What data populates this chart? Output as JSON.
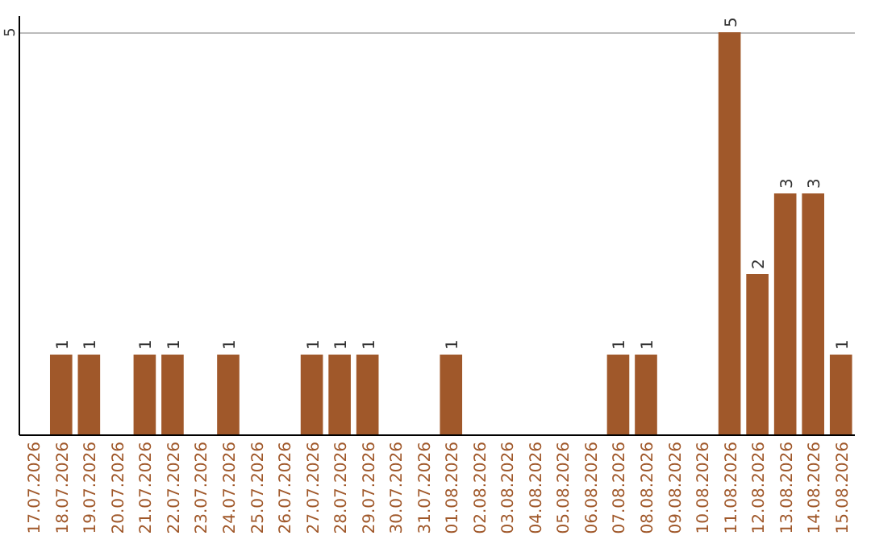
{
  "chart_data": {
    "type": "bar",
    "categories": [
      "17.07.2026",
      "18.07.2026",
      "19.07.2026",
      "20.07.2026",
      "21.07.2026",
      "22.07.2026",
      "23.07.2026",
      "24.07.2026",
      "25.07.2026",
      "26.07.2026",
      "27.07.2026",
      "28.07.2026",
      "29.07.2026",
      "30.07.2026",
      "31.07.2026",
      "01.08.2026",
      "02.08.2026",
      "03.08.2026",
      "04.08.2026",
      "05.08.2026",
      "06.08.2026",
      "07.08.2026",
      "08.08.2026",
      "09.08.2026",
      "10.08.2026",
      "11.08.2026",
      "12.08.2026",
      "13.08.2026",
      "14.08.2026",
      "15.08.2026"
    ],
    "values": [
      0,
      1,
      1,
      0,
      1,
      1,
      0,
      1,
      0,
      0,
      1,
      1,
      1,
      0,
      0,
      1,
      0,
      0,
      0,
      0,
      0,
      1,
      1,
      0,
      0,
      5,
      2,
      3,
      3,
      1
    ],
    "value_labels": [
      null,
      "1",
      "1",
      null,
      "1",
      "1",
      null,
      "1",
      null,
      null,
      "1",
      "1",
      "1",
      null,
      null,
      "1",
      null,
      null,
      null,
      null,
      null,
      "1",
      "1",
      null,
      null,
      "5",
      "2",
      "3",
      "3",
      "1"
    ],
    "color": "#a0582a",
    "ylim": [
      0,
      5.2
    ],
    "yticks": [
      5
    ],
    "grid": "y"
  }
}
